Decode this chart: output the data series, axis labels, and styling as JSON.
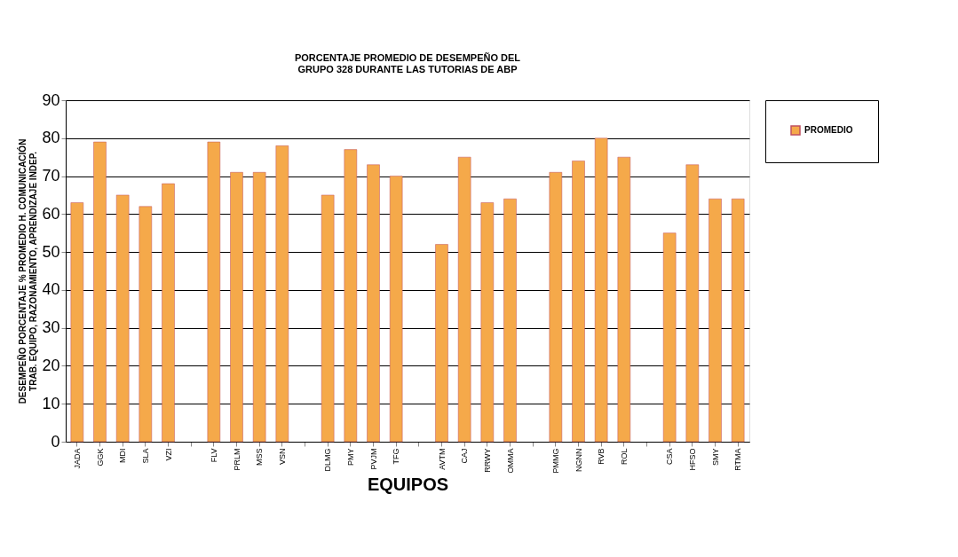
{
  "chart_data": {
    "type": "bar",
    "title": [
      "PORCENTAJE PROMEDIO DE DESEMPEÑO DEL",
      "GRUPO 328 DURANTE LAS TUTORIAS DE ABP"
    ],
    "xlabel": "EQUIPOS",
    "ylabel": [
      "DESEMPEÑO PORCENTAJE % PROMEDIO H. COMUNICACIÓN",
      "TRAB. EQUIPO, RAZONAMIENTO, APRENDIZAJE INDEP."
    ],
    "categories": [
      "JADA",
      "GGK",
      "MDI",
      "SLA",
      "VZI",
      null,
      "FLV",
      "PRLM",
      "MSS",
      "VSN",
      null,
      "DLMG",
      "PMY",
      "PVJM",
      "TFG",
      null,
      "AVTM",
      "CAJ",
      "RRWY",
      "OMMA",
      null,
      "PMMG",
      "NGNN",
      "RVB",
      "ROL",
      null,
      "CSA",
      "HFSO",
      "SMY",
      "RTMA"
    ],
    "series": [
      {
        "name": "PROMEDIO",
        "color": "#f5a94a",
        "values": [
          63,
          79,
          65,
          62,
          68,
          null,
          79,
          71,
          71,
          78,
          null,
          65,
          77,
          73,
          70,
          null,
          52,
          75,
          63,
          64,
          null,
          71,
          74,
          80,
          75,
          null,
          55,
          73,
          64,
          64
        ]
      }
    ],
    "ylim": [
      0,
      90
    ],
    "yticks": [
      0,
      10,
      20,
      30,
      40,
      50,
      60,
      70,
      80,
      90
    ],
    "grid": "y",
    "legend": "right"
  }
}
